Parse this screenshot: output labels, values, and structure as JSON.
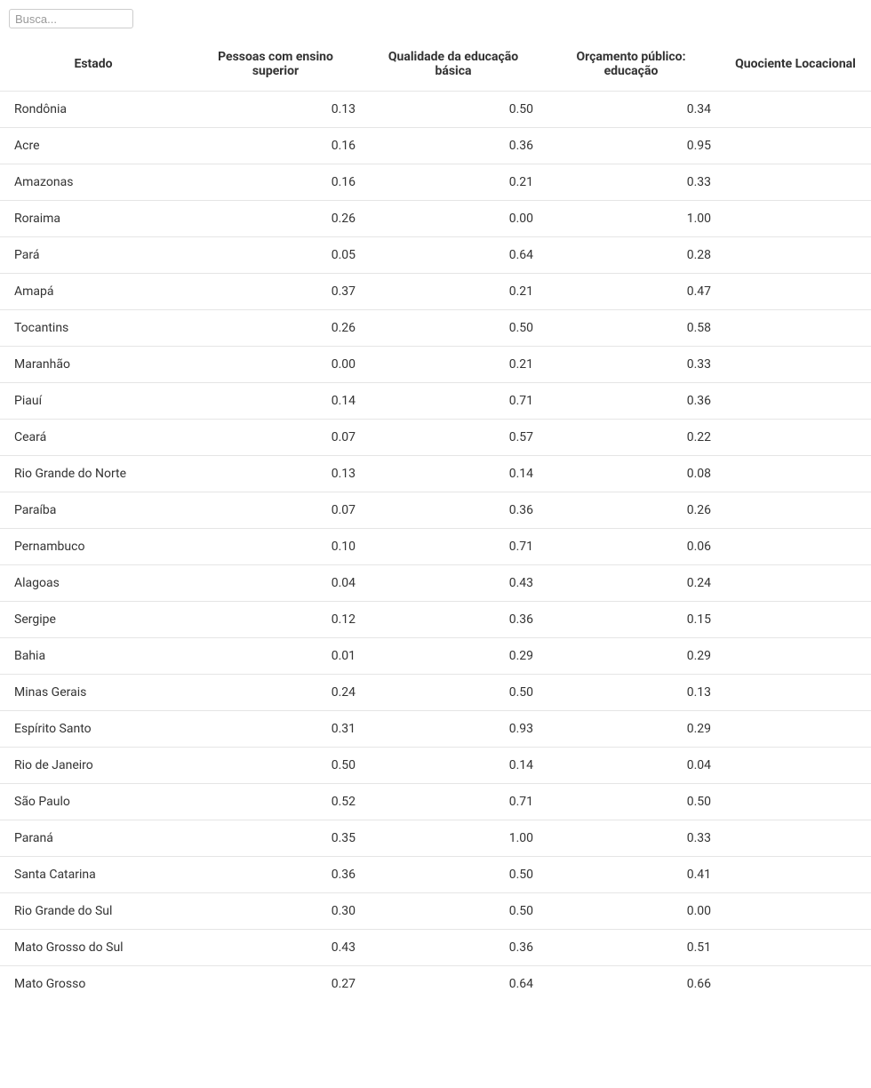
{
  "search": {
    "placeholder": "Busca..."
  },
  "table": {
    "headers": {
      "estado": "Estado",
      "pessoas": "Pessoas com ensino superior",
      "qualidade": "Qualidade da educação básica",
      "orcamento": "Orçamento público: educação",
      "quociente": "Quociente Locacional"
    },
    "rows": [
      {
        "estado": "Rondônia",
        "pessoas": "0.13",
        "qualidade": "0.50",
        "orcamento": "0.34"
      },
      {
        "estado": "Acre",
        "pessoas": "0.16",
        "qualidade": "0.36",
        "orcamento": "0.95"
      },
      {
        "estado": "Amazonas",
        "pessoas": "0.16",
        "qualidade": "0.21",
        "orcamento": "0.33"
      },
      {
        "estado": "Roraima",
        "pessoas": "0.26",
        "qualidade": "0.00",
        "orcamento": "1.00"
      },
      {
        "estado": "Pará",
        "pessoas": "0.05",
        "qualidade": "0.64",
        "orcamento": "0.28"
      },
      {
        "estado": "Amapá",
        "pessoas": "0.37",
        "qualidade": "0.21",
        "orcamento": "0.47"
      },
      {
        "estado": "Tocantins",
        "pessoas": "0.26",
        "qualidade": "0.50",
        "orcamento": "0.58"
      },
      {
        "estado": "Maranhão",
        "pessoas": "0.00",
        "qualidade": "0.21",
        "orcamento": "0.33"
      },
      {
        "estado": "Piauí",
        "pessoas": "0.14",
        "qualidade": "0.71",
        "orcamento": "0.36"
      },
      {
        "estado": "Ceará",
        "pessoas": "0.07",
        "qualidade": "0.57",
        "orcamento": "0.22"
      },
      {
        "estado": "Rio Grande do Norte",
        "pessoas": "0.13",
        "qualidade": "0.14",
        "orcamento": "0.08"
      },
      {
        "estado": "Paraíba",
        "pessoas": "0.07",
        "qualidade": "0.36",
        "orcamento": "0.26"
      },
      {
        "estado": "Pernambuco",
        "pessoas": "0.10",
        "qualidade": "0.71",
        "orcamento": "0.06"
      },
      {
        "estado": "Alagoas",
        "pessoas": "0.04",
        "qualidade": "0.43",
        "orcamento": "0.24"
      },
      {
        "estado": "Sergipe",
        "pessoas": "0.12",
        "qualidade": "0.36",
        "orcamento": "0.15"
      },
      {
        "estado": "Bahia",
        "pessoas": "0.01",
        "qualidade": "0.29",
        "orcamento": "0.29"
      },
      {
        "estado": "Minas Gerais",
        "pessoas": "0.24",
        "qualidade": "0.50",
        "orcamento": "0.13"
      },
      {
        "estado": "Espírito Santo",
        "pessoas": "0.31",
        "qualidade": "0.93",
        "orcamento": "0.29"
      },
      {
        "estado": "Rio de Janeiro",
        "pessoas": "0.50",
        "qualidade": "0.14",
        "orcamento": "0.04"
      },
      {
        "estado": "São Paulo",
        "pessoas": "0.52",
        "qualidade": "0.71",
        "orcamento": "0.50"
      },
      {
        "estado": "Paraná",
        "pessoas": "0.35",
        "qualidade": "1.00",
        "orcamento": "0.33"
      },
      {
        "estado": "Santa Catarina",
        "pessoas": "0.36",
        "qualidade": "0.50",
        "orcamento": "0.41"
      },
      {
        "estado": "Rio Grande do Sul",
        "pessoas": "0.30",
        "qualidade": "0.50",
        "orcamento": "0.00"
      },
      {
        "estado": "Mato Grosso do Sul",
        "pessoas": "0.43",
        "qualidade": "0.36",
        "orcamento": "0.51"
      },
      {
        "estado": "Mato Grosso",
        "pessoas": "0.27",
        "qualidade": "0.64",
        "orcamento": "0.66"
      }
    ]
  },
  "colors": {
    "text": "#333333",
    "border": "#e5e5e5",
    "inputBorder": "#cccccc",
    "placeholder": "#999999",
    "background": "#ffffff"
  },
  "typography": {
    "header_fontsize": 14,
    "header_fontweight": 700,
    "cell_fontsize": 14
  }
}
